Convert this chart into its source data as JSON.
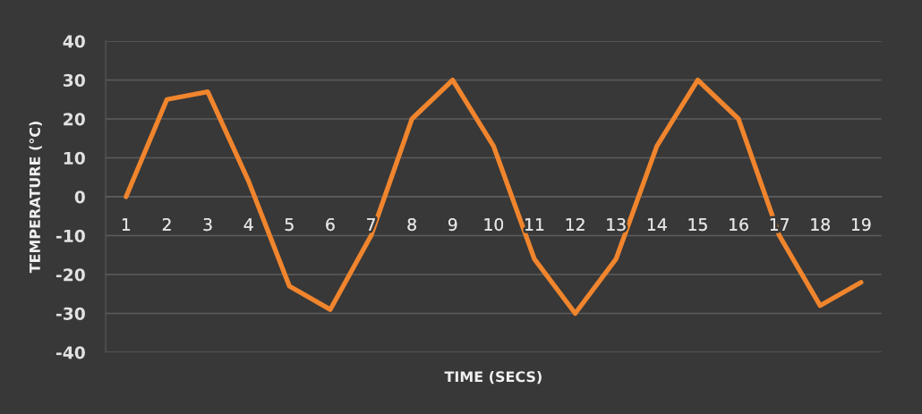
{
  "chart_data": {
    "type": "line",
    "xlabel": "TIME (SECS)",
    "ylabel": "TEMPERATURE (°C)",
    "categories": [
      "1",
      "2",
      "3",
      "4",
      "5",
      "6",
      "7",
      "8",
      "9",
      "10",
      "11",
      "12",
      "13",
      "14",
      "15",
      "16",
      "17",
      "18",
      "19"
    ],
    "series": [
      {
        "color": "#f0852d",
        "values": [
          0,
          25,
          27,
          4,
          -23,
          -29,
          -10,
          20,
          30,
          13,
          -16,
          -30,
          -16,
          13,
          30,
          20,
          -10,
          -28,
          -22
        ]
      }
    ],
    "ylim": [
      -40,
      40
    ],
    "yticks": [
      -40,
      -30,
      -20,
      -10,
      0,
      10,
      20,
      30,
      40
    ],
    "grid": "y",
    "line_style": "solid"
  }
}
